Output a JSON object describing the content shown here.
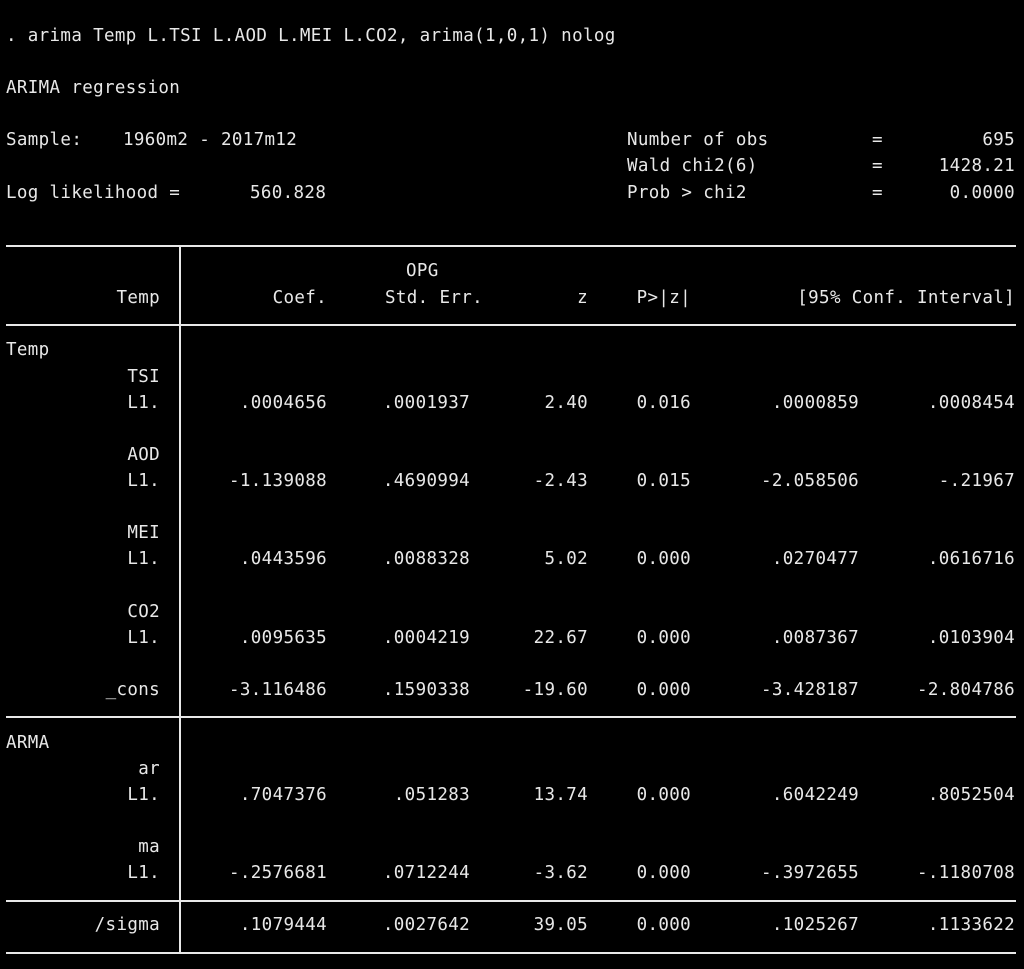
{
  "command": ". arima Temp L.TSI L.AOD L.MEI L.CO2, arima(1,0,1) nolog",
  "title": "ARIMA regression",
  "sample_label": "Sample:",
  "sample_value": "1960m2 - 2017m12",
  "loglik_label": "Log likelihood =",
  "loglik_value": "560.828",
  "stats": [
    {
      "label": "Number of obs",
      "eq": "=",
      "value": "695"
    },
    {
      "label": "Wald chi2(6)",
      "eq": "=",
      "value": "1428.21"
    },
    {
      "label": "Prob > chi2",
      "eq": "=",
      "value": "0.0000"
    }
  ],
  "header": {
    "opg": "OPG",
    "depvar": "Temp",
    "coef": "Coef.",
    "se": "Std. Err.",
    "z": "z",
    "p": "P>|z|",
    "ci": "[95% Conf. Interval]"
  },
  "eq_temp": "Temp",
  "eq_arma": "ARMA",
  "rows": [
    {
      "var": "TSI",
      "lag": "L1.",
      "coef": ".0004656",
      "se": ".0001937",
      "z": "2.40",
      "p": "0.016",
      "lo": ".0000859",
      "hi": ".0008454"
    },
    {
      "var": "AOD",
      "lag": "L1.",
      "coef": "-1.139088",
      "se": ".4690994",
      "z": "-2.43",
      "p": "0.015",
      "lo": "-2.058506",
      "hi": "-.21967"
    },
    {
      "var": "MEI",
      "lag": "L1.",
      "coef": ".0443596",
      "se": ".0088328",
      "z": "5.02",
      "p": "0.000",
      "lo": ".0270477",
      "hi": ".0616716"
    },
    {
      "var": "CO2",
      "lag": "L1.",
      "coef": ".0095635",
      "se": ".0004219",
      "z": "22.67",
      "p": "0.000",
      "lo": ".0087367",
      "hi": ".0103904"
    },
    {
      "var": "_cons",
      "coef": "-3.116486",
      "se": ".1590338",
      "z": "-19.60",
      "p": "0.000",
      "lo": "-3.428187",
      "hi": "-2.804786"
    },
    {
      "var": "ar",
      "lag": "L1.",
      "coef": ".7047376",
      "se": ".051283",
      "z": "13.74",
      "p": "0.000",
      "lo": ".6042249",
      "hi": ".8052504"
    },
    {
      "var": "ma",
      "lag": "L1.",
      "coef": "-.2576681",
      "se": ".0712244",
      "z": "-3.62",
      "p": "0.000",
      "lo": "-.3972655",
      "hi": "-.1180708"
    },
    {
      "var": "/sigma",
      "coef": ".1079444",
      "se": ".0027642",
      "z": "39.05",
      "p": "0.000",
      "lo": ".1025267",
      "hi": ".1133622"
    }
  ]
}
